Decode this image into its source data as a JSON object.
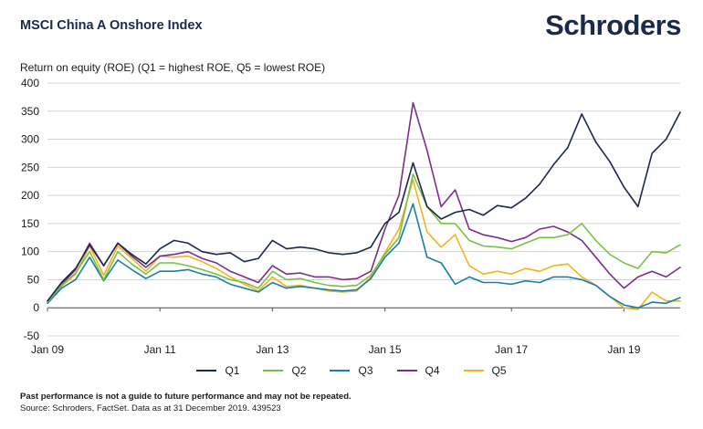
{
  "header": {
    "title": "MSCI China A Onshore Index",
    "brand": "Schroders"
  },
  "footer": {
    "disclaimer": "Past performance is not a guide to future performance and may not be repeated.",
    "source": "Source: Schroders, FactSet. Data as at 31 December 2019. 439523"
  },
  "colors": {
    "Q1": "#1b2a4a",
    "Q2": "#7ac143",
    "Q3": "#1a7fa6",
    "Q4": "#7b2d8e",
    "Q5": "#f2b31c",
    "grid": "#d4d4d4",
    "axis": "#555555"
  },
  "chart_data": {
    "type": "line",
    "title": "Return on equity (ROE) (Q1 = highest ROE, Q5 = lowest ROE)",
    "xlabel": "",
    "ylabel": "",
    "ylim": [
      -50,
      400
    ],
    "yticks": [
      -50,
      0,
      50,
      100,
      150,
      200,
      250,
      300,
      350,
      400
    ],
    "xlim": [
      "Jan 09",
      "Dec 19"
    ],
    "xticks": [
      "Jan 09",
      "Jan 11",
      "Jan 13",
      "Jan 15",
      "Jan 17",
      "Jan 19"
    ],
    "grid": true,
    "legend": "bottom",
    "x": [
      "Jan 09",
      "Apr 09",
      "Jul 09",
      "Oct 09",
      "Jan 10",
      "Apr 10",
      "Jul 10",
      "Oct 10",
      "Jan 11",
      "Apr 11",
      "Jul 11",
      "Oct 11",
      "Jan 12",
      "Apr 12",
      "Jul 12",
      "Oct 12",
      "Jan 13",
      "Apr 13",
      "Jul 13",
      "Oct 13",
      "Jan 14",
      "Apr 14",
      "Jul 14",
      "Oct 14",
      "Jan 15",
      "Apr 15",
      "Jun 15",
      "Jul 15",
      "Oct 15",
      "Jan 16",
      "Apr 16",
      "Jul 16",
      "Oct 16",
      "Jan 17",
      "Apr 17",
      "Jul 17",
      "Oct 17",
      "Jan 18",
      "Apr 18",
      "Jul 18",
      "Oct 18",
      "Jan 19",
      "Apr 19",
      "Jul 19",
      "Oct 19",
      "Dec 19"
    ],
    "series": [
      {
        "name": "Q1",
        "values": [
          12,
          45,
          70,
          112,
          75,
          115,
          95,
          78,
          105,
          120,
          115,
          100,
          95,
          98,
          82,
          88,
          120,
          105,
          108,
          105,
          98,
          95,
          98,
          108,
          150,
          170,
          258,
          180,
          158,
          170,
          175,
          165,
          182,
          178,
          195,
          220,
          255,
          285,
          345,
          295,
          260,
          215,
          180,
          275,
          300,
          348
        ]
      },
      {
        "name": "Q2",
        "values": [
          10,
          40,
          62,
          100,
          50,
          100,
          78,
          60,
          80,
          80,
          75,
          68,
          60,
          50,
          45,
          35,
          65,
          50,
          52,
          45,
          40,
          38,
          40,
          58,
          95,
          125,
          238,
          180,
          150,
          150,
          120,
          110,
          108,
          105,
          115,
          125,
          125,
          130,
          150,
          120,
          95,
          80,
          70,
          100,
          98,
          112
        ]
      },
      {
        "name": "Q3",
        "values": [
          8,
          35,
          50,
          90,
          48,
          85,
          68,
          52,
          65,
          65,
          68,
          60,
          55,
          42,
          35,
          28,
          45,
          35,
          38,
          35,
          32,
          30,
          32,
          52,
          90,
          115,
          185,
          90,
          80,
          42,
          55,
          45,
          45,
          42,
          48,
          45,
          55,
          55,
          50,
          40,
          20,
          5,
          0,
          10,
          8,
          18
        ]
      },
      {
        "name": "Q4",
        "values": [
          12,
          42,
          68,
          115,
          75,
          115,
          92,
          72,
          92,
          95,
          100,
          88,
          80,
          65,
          55,
          45,
          75,
          60,
          62,
          55,
          55,
          50,
          52,
          65,
          140,
          200,
          365,
          280,
          180,
          210,
          140,
          130,
          125,
          118,
          125,
          140,
          145,
          135,
          120,
          90,
          60,
          35,
          55,
          65,
          55,
          72
        ]
      },
      {
        "name": "Q5",
        "values": [
          10,
          38,
          60,
          110,
          58,
          110,
          88,
          65,
          92,
          90,
          92,
          82,
          70,
          55,
          42,
          30,
          55,
          38,
          40,
          35,
          30,
          28,
          30,
          55,
          98,
          140,
          228,
          135,
          108,
          130,
          75,
          60,
          65,
          60,
          70,
          65,
          75,
          78,
          55,
          40,
          20,
          0,
          -3,
          28,
          12,
          12
        ]
      }
    ]
  }
}
